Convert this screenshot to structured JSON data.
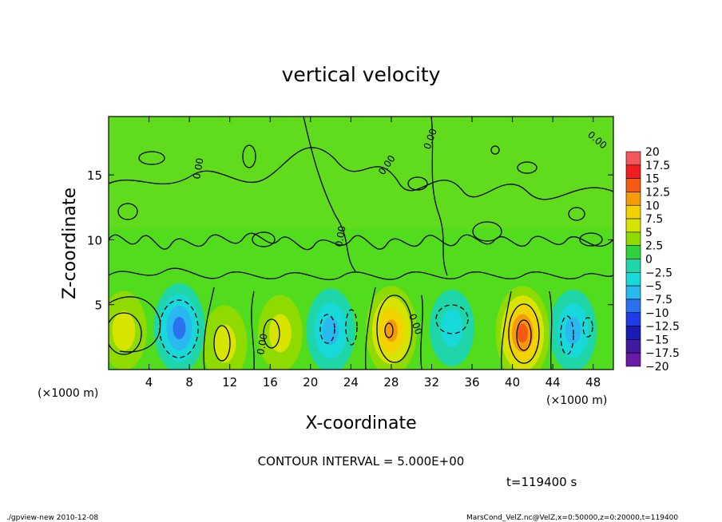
{
  "chart_data": {
    "type": "heatmap",
    "title": "vertical velocity",
    "xlabel": "X-coordinate",
    "ylabel": "Z-coordinate",
    "x_unit_note": "(×1000 m)",
    "y_unit_note": "(×1000 m)",
    "xlim": [
      0,
      50
    ],
    "ylim": [
      0,
      19.5
    ],
    "x_ticks": [
      4,
      8,
      12,
      16,
      20,
      24,
      28,
      32,
      36,
      40,
      44,
      48
    ],
    "y_ticks": [
      5,
      10,
      15
    ],
    "contour_interval_text": "CONTOUR INTERVAL = 5.000E+00",
    "contour_label": "0.00",
    "time_text": "t=119400 s",
    "colorbar": {
      "labels": [
        "20",
        "17.5",
        "15",
        "12.5",
        "10",
        "7.5",
        "5",
        "2.5",
        "0",
        "−2.5",
        "−5",
        "−7.5",
        "−10",
        "−12.5",
        "−15",
        "−17.5",
        "−20"
      ],
      "colors": [
        "#f79aa0",
        "#f4565e",
        "#f01e1e",
        "#f45a14",
        "#f59b0a",
        "#f2d200",
        "#d6e400",
        "#8fdb00",
        "#2ed23a",
        "#1fd6a8",
        "#17d9d9",
        "#2ab8f0",
        "#2a72f0",
        "#1f3ce6",
        "#1a1ab4",
        "#401aa0",
        "#6a1aa8"
      ]
    },
    "features": [
      {
        "kind": "updraft",
        "x": 28,
        "z": 3.0,
        "peak": 10
      },
      {
        "kind": "updraft",
        "x": 41,
        "z": 2.8,
        "peak": 12
      },
      {
        "kind": "updraft",
        "x": 1.5,
        "z": 3.0,
        "peak": 6
      },
      {
        "kind": "updraft",
        "x": 17,
        "z": 2.8,
        "peak": 5
      },
      {
        "kind": "updraft",
        "x": 11.5,
        "z": 2.0,
        "peak": 5
      },
      {
        "kind": "downdraft",
        "x": 7,
        "z": 3.2,
        "peak": -10
      },
      {
        "kind": "downdraft",
        "x": 22,
        "z": 3.0,
        "peak": -8
      },
      {
        "kind": "downdraft",
        "x": 34,
        "z": 3.2,
        "peak": -5
      },
      {
        "kind": "downdraft",
        "x": 46,
        "z": 3.0,
        "peak": -7
      }
    ]
  },
  "footer": {
    "left": "./gpview-new  2010-12-08",
    "right": "MarsCond_VelZ.nc@VelZ,x=0:50000,z=0:20000,t=119400"
  }
}
